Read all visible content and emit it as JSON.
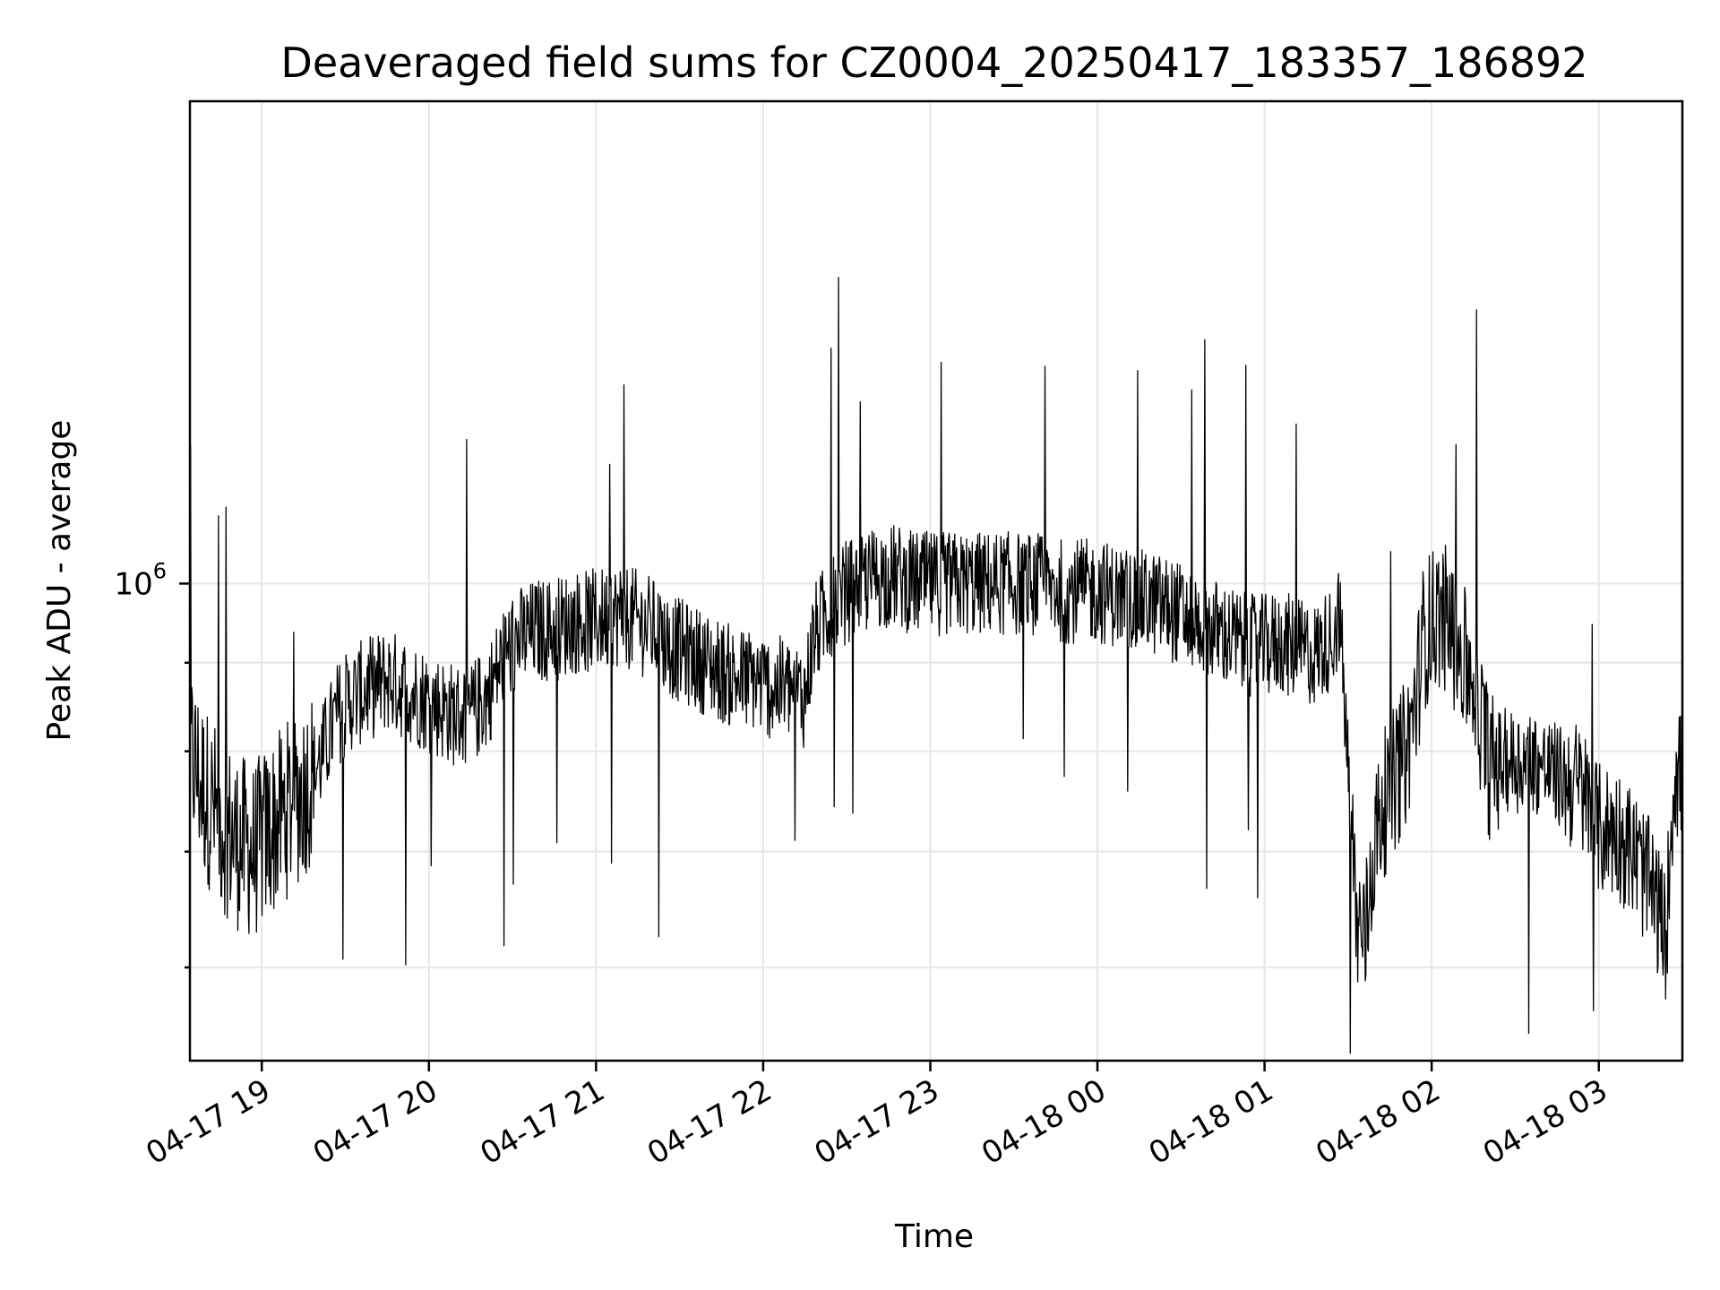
{
  "chart_data": {
    "type": "line",
    "title": "Deaveraged field sums for CZ0004_20250417_183357_186892",
    "xlabel": "Time",
    "ylabel": "Peak ADU - average",
    "y_scale": "log",
    "y_tick_label": {
      "base": "10",
      "exp": "6"
    },
    "y_tick_value": 1000000,
    "x_tick_labels": [
      "04-17 19",
      "04-17 20",
      "04-17 21",
      "04-17 22",
      "04-17 23",
      "04-18 00",
      "04-18 01",
      "04-18 02",
      "04-18 03"
    ],
    "x_tick_hours": [
      19,
      20,
      21,
      22,
      23,
      24,
      25,
      26,
      27
    ],
    "xlim_hours": [
      18.57,
      27.5
    ],
    "ylim": [
      530000,
      1900000
    ],
    "grid": true,
    "line_color": "#000000",
    "series": [
      {
        "x_hours": [
          18.57,
          18.65,
          18.75,
          18.85,
          18.95,
          19.05,
          19.15,
          19.25,
          19.35,
          19.45,
          19.55,
          19.65,
          19.75,
          19.85,
          19.95,
          20.05,
          20.15,
          20.25,
          20.35,
          20.45,
          20.55,
          20.65,
          20.75,
          20.85,
          20.95,
          21.05,
          21.15,
          21.25,
          21.35,
          21.45,
          21.55,
          21.65,
          21.75,
          21.85,
          21.95,
          22.05,
          22.15,
          22.25,
          22.3,
          22.4,
          22.5,
          22.6,
          22.7,
          22.8,
          22.9,
          23.0,
          23.1,
          23.2,
          23.3,
          23.4,
          23.5,
          23.6,
          23.7,
          23.8,
          23.9,
          24.0,
          24.1,
          24.2,
          24.3,
          24.4,
          24.5,
          24.6,
          24.7,
          24.8,
          24.9,
          25.0,
          25.1,
          25.2,
          25.3,
          25.4,
          25.45,
          25.5,
          25.55,
          25.6,
          25.65,
          25.7,
          25.75,
          25.8,
          25.85,
          25.9,
          25.95,
          26.0,
          26.05,
          26.1,
          26.15,
          26.2,
          26.25,
          26.3,
          26.35,
          26.4,
          26.5,
          26.6,
          26.7,
          26.8,
          26.9,
          27.0,
          27.1,
          27.2,
          27.3,
          27.35,
          27.4,
          27.45,
          27.5
        ],
        "values": [
          800000,
          760000,
          730000,
          710000,
          700000,
          720000,
          740000,
          760000,
          790000,
          840000,
          860000,
          870000,
          880000,
          870000,
          860000,
          850000,
          840000,
          840000,
          860000,
          910000,
          930000,
          940000,
          940000,
          950000,
          950000,
          955000,
          960000,
          950000,
          940000,
          920000,
          910000,
          900000,
          890000,
          880000,
          880000,
          870000,
          870000,
          860000,
          930000,
          970000,
          990000,
          1000000,
          1010000,
          1010000,
          1000000,
          1000000,
          1000000,
          1000000,
          1000000,
          1000000,
          1000000,
          1000000,
          995000,
          990000,
          990000,
          990000,
          985000,
          980000,
          975000,
          970000,
          960000,
          950000,
          940000,
          930000,
          920000,
          920000,
          925000,
          915000,
          910000,
          930000,
          960000,
          780000,
          640000,
          620000,
          700000,
          740000,
          760000,
          780000,
          800000,
          850000,
          930000,
          950000,
          960000,
          950000,
          920000,
          900000,
          880000,
          830000,
          780000,
          790000,
          790000,
          790000,
          780000,
          770000,
          760000,
          720000,
          720000,
          700000,
          670000,
          650000,
          620000,
          780000,
          770000
        ]
      }
    ]
  }
}
